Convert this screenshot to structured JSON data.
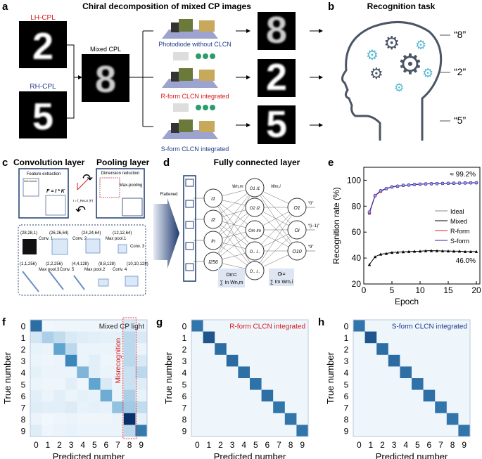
{
  "panel_a": {
    "label": "a",
    "title": "Chiral decomposition of mixed CP images",
    "lh": "LH-CPL",
    "rh": "RH-CPL",
    "mixed": "Mixed CPL",
    "digits": {
      "lh": "2",
      "rh": "5",
      "mixed": "8",
      "out1": "8",
      "out2": "2",
      "out3": "5"
    },
    "dev1": "Photodiode without CLCN",
    "dev2": "R-form CLCN integrated",
    "dev3": "S-form CLCN integrated",
    "colors": {
      "red": "#d7191c",
      "blue": "#1f3a8a"
    }
  },
  "panel_b": {
    "label": "b",
    "title": "Recognition task",
    "outputs": [
      "“8”",
      "“2”",
      "“5”"
    ]
  },
  "panel_c": {
    "label": "c",
    "conv_title": "Convolution layer",
    "pool_title": "Pooling layer",
    "feature": "Feature extraction",
    "kernel": "3x3 kernel",
    "formula": "F = I * K",
    "relu": "I = f_ReLU (F)",
    "dim": "Dimension reduction",
    "maxpool": "Max-pooling",
    "shapes": [
      "(28,28,1)",
      "(26,26,64)",
      "(24,24,64)",
      "(12,12,64)",
      "(10,10,128)",
      "(8,8,128)",
      "(4,4,128)",
      "(2,2,256)",
      "(1,1,256)"
    ],
    "ops": [
      "Conv. 1",
      "Conv. 2",
      "Max pool.1",
      "Conv. 3",
      "Conv. 4",
      "Max pool.2",
      "Conv. 5",
      "Max pool.3"
    ]
  },
  "panel_d": {
    "label": "d",
    "title": "Fully connected layer",
    "flattened": "Flattened",
    "inputs": [
      "I1",
      "I2",
      "In",
      "I256"
    ],
    "hidden": [
      "O1 I1",
      "O2 I2",
      "Om Im",
      "O.. I..",
      "O.. I.."
    ],
    "outputs": [
      "O1",
      "Oi",
      "O10"
    ],
    "out_labels": [
      "“0”",
      "“(i−1)”",
      "“9”"
    ],
    "w1": "Wn,m",
    "w2": "Wm,i",
    "f1a": "Om=",
    "f1b": "∑ In Wn,m",
    "f2a": "Oi=",
    "f2b": "∑ Im Wm,i"
  },
  "chart_data": [
    {
      "type": "line",
      "label": "e",
      "xlabel": "Epoch",
      "ylabel": "Recognition rate (%)",
      "xlim": [
        0,
        20
      ],
      "ylim": [
        20,
        110
      ],
      "xticks": [
        "0",
        "5",
        "10",
        "15",
        "20"
      ],
      "yticks": [
        "20",
        "40",
        "60",
        "80",
        "100"
      ],
      "legend_position": "center-right",
      "annotations": [
        "≈ 99.2%",
        "46.0%"
      ],
      "x": [
        1,
        2,
        3,
        4,
        5,
        6,
        7,
        8,
        9,
        10,
        11,
        12,
        13,
        14,
        15,
        16,
        17,
        18,
        19,
        20
      ],
      "series": [
        {
          "name": "Ideal",
          "color": "#888888",
          "values": [
            74.5,
            88,
            91.5,
            93.5,
            94.8,
            95.3,
            96,
            96.3,
            96.7,
            96.9,
            97.1,
            97.3,
            97.4,
            97.5,
            97.6,
            97.7,
            97.8,
            97.9,
            98,
            98
          ]
        },
        {
          "name": "Mixed",
          "color": "#000000",
          "values": [
            35,
            41,
            43,
            43.5,
            44.3,
            44.5,
            44.8,
            45,
            45.2,
            45.3,
            45.6,
            45.7,
            45.6,
            45.5,
            45.4,
            45.3,
            45.3,
            45,
            45,
            45
          ]
        },
        {
          "name": "R-form",
          "color": "#e41a1c",
          "values": [
            74.8,
            88,
            91.5,
            93.5,
            94.8,
            95.3,
            96,
            96.3,
            96.7,
            96.9,
            97.1,
            97.3,
            97.4,
            97.5,
            97.6,
            97.7,
            97.8,
            97.9,
            98,
            98
          ]
        },
        {
          "name": "S-form",
          "color": "#2626b0",
          "values": [
            75.5,
            88.2,
            92,
            93.6,
            95,
            95.5,
            96.1,
            96.4,
            96.8,
            97,
            97.2,
            97.3,
            97.4,
            97.5,
            97.6,
            97.7,
            97.8,
            97.9,
            98,
            98.1
          ]
        }
      ]
    },
    {
      "type": "heatmap",
      "label": "f",
      "title": "Mixed CP light",
      "annotation": "Misrecognition",
      "xlabel": "Predicted number",
      "ylabel": "True number",
      "ticks": [
        "0",
        "1",
        "2",
        "3",
        "4",
        "5",
        "6",
        "7",
        "8",
        "9"
      ],
      "values": [
        [
          0.75,
          0.02,
          0.03,
          0.03,
          0.03,
          0.03,
          0.03,
          0.03,
          0.1,
          0.05
        ],
        [
          0.12,
          0.25,
          0.18,
          0.1,
          0.08,
          0.07,
          0.06,
          0.06,
          0.2,
          0.1
        ],
        [
          0.05,
          0.04,
          0.5,
          0.2,
          0.04,
          0.04,
          0.04,
          0.04,
          0.2,
          0.04
        ],
        [
          0.04,
          0.03,
          0.04,
          0.65,
          0.04,
          0.07,
          0.03,
          0.03,
          0.2,
          0.1
        ],
        [
          0.06,
          0.04,
          0.04,
          0.04,
          0.4,
          0.07,
          0.04,
          0.04,
          0.15,
          0.2
        ],
        [
          0.04,
          0.03,
          0.03,
          0.07,
          0.03,
          0.5,
          0.1,
          0.04,
          0.15,
          0.08
        ],
        [
          0.07,
          0.04,
          0.07,
          0.04,
          0.06,
          0.05,
          0.45,
          0.04,
          0.25,
          0.05
        ],
        [
          0.08,
          0.07,
          0.07,
          0.09,
          0.05,
          0.06,
          0.05,
          0.33,
          0.28,
          0.18
        ],
        [
          0.04,
          0.02,
          0.03,
          0.04,
          0.03,
          0.03,
          0.03,
          0.04,
          1.0,
          0.06
        ],
        [
          0.08,
          0.03,
          0.04,
          0.05,
          0.04,
          0.04,
          0.04,
          0.04,
          0.2,
          0.7
        ]
      ]
    },
    {
      "type": "heatmap",
      "label": "g",
      "title": "R-form CLCN integrated",
      "xlabel": "Predicted number",
      "ylabel": "True number",
      "ticks": [
        "0",
        "1",
        "2",
        "3",
        "4",
        "5",
        "6",
        "7",
        "8",
        "9"
      ],
      "diagonal": [
        0.72,
        0.85,
        0.75,
        0.76,
        0.74,
        0.73,
        0.74,
        0.72,
        0.72,
        0.72
      ],
      "off_diagonal": 0.03
    },
    {
      "type": "heatmap",
      "label": "h",
      "title": "S-form CLCN integrated",
      "xlabel": "Predicted number",
      "ylabel": "True number",
      "ticks": [
        "0",
        "1",
        "2",
        "3",
        "4",
        "5",
        "6",
        "7",
        "8",
        "9"
      ],
      "diagonal": [
        0.72,
        0.85,
        0.75,
        0.76,
        0.74,
        0.73,
        0.74,
        0.72,
        0.72,
        0.72
      ],
      "off_diagonal": 0.03
    }
  ]
}
